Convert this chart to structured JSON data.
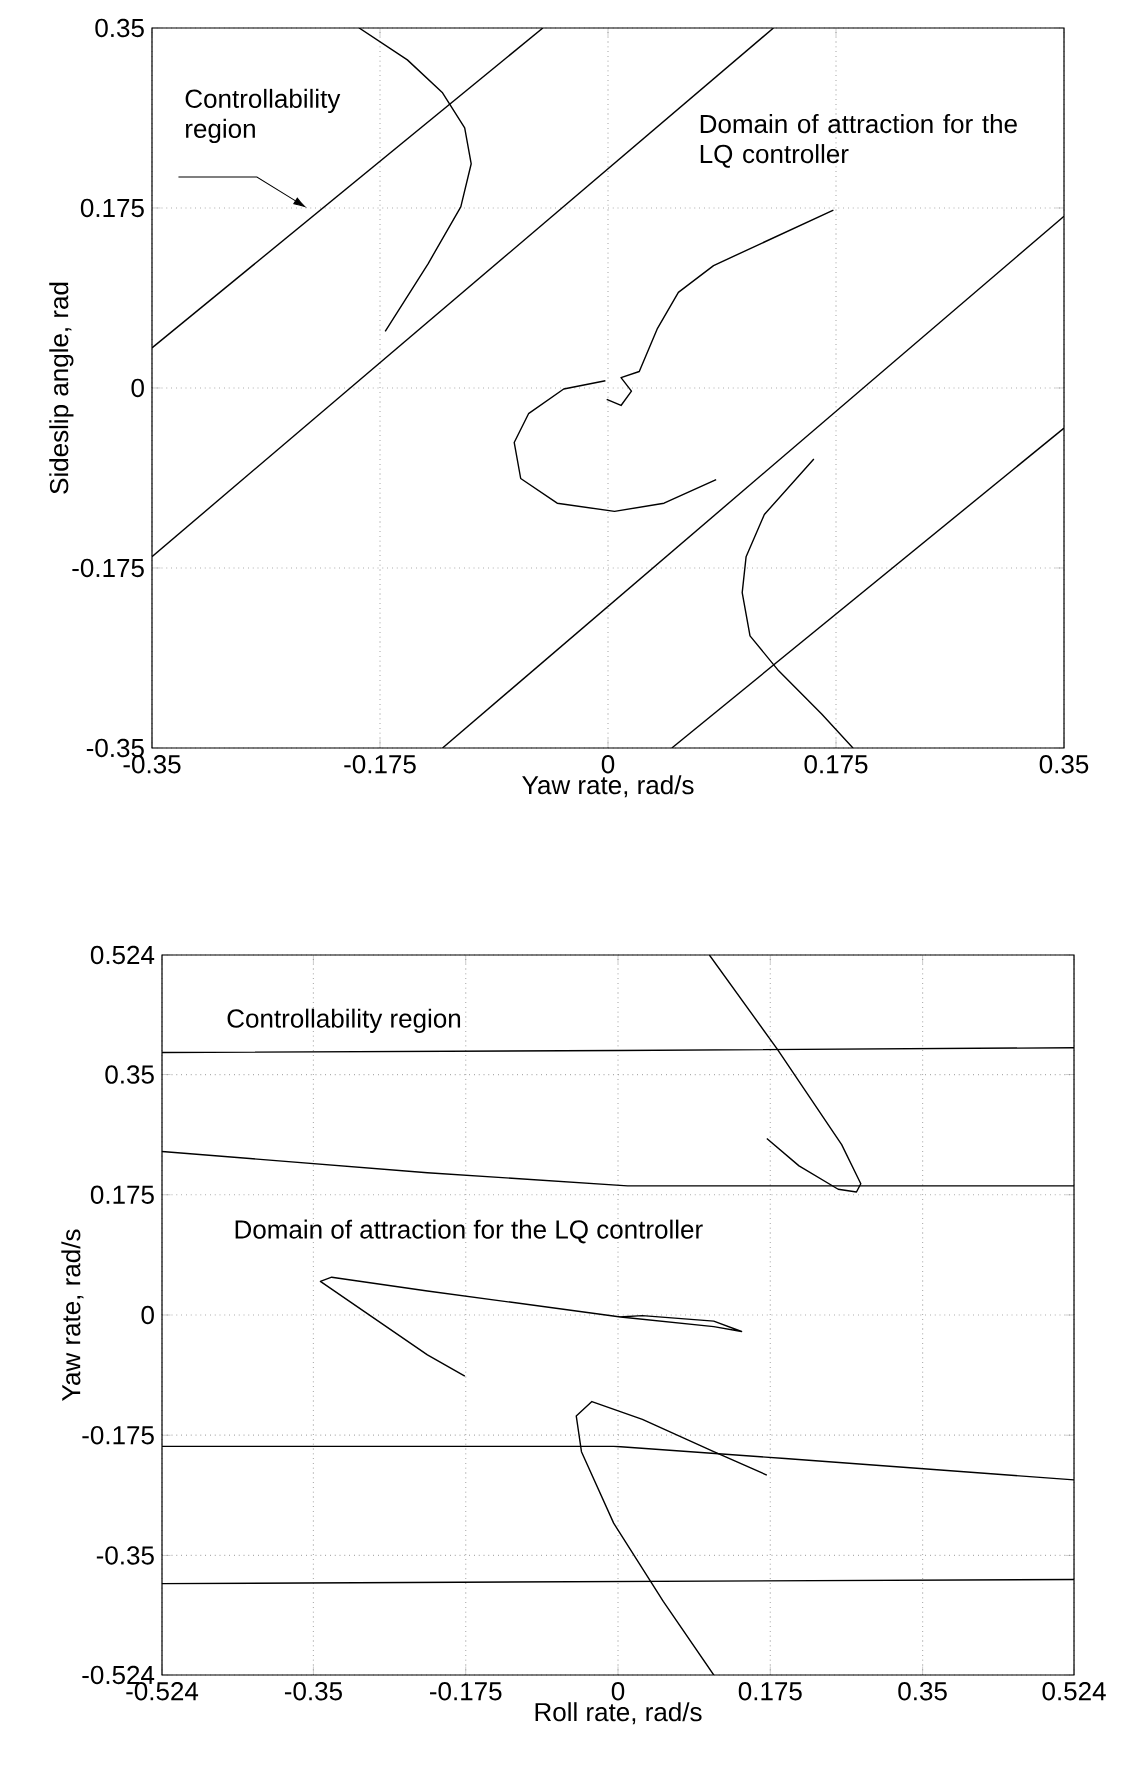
{
  "chart_data": [
    {
      "type": "line",
      "xlabel": "Yaw rate, rad/s",
      "ylabel": "Sideslip angle, rad",
      "xlim": [
        -0.35,
        0.35
      ],
      "ylim": [
        -0.35,
        0.35
      ],
      "xticks": [
        -0.35,
        -0.175,
        0,
        0.175,
        0.35
      ],
      "yticks": [
        -0.35,
        -0.175,
        0,
        0.175,
        0.35
      ],
      "grid": true,
      "marker": "none",
      "line_style": "solid",
      "annotations": [
        {
          "text": "Controllability region",
          "x": -0.231,
          "y": 0.175
        },
        "Domain of attraction for the LQ controller"
      ],
      "series": [
        {
          "color": "#000000",
          "x": [
            -0.35,
            -0.05
          ],
          "values": [
            0.039,
            0.35
          ]
        },
        {
          "color": "#000000",
          "x": [
            -0.35,
            0.127
          ],
          "values": [
            -0.164,
            0.35
          ]
        },
        {
          "color": "#000000",
          "x": [
            -0.127,
            0.35
          ],
          "values": [
            -0.35,
            0.167
          ]
        },
        {
          "color": "#000000",
          "x": [
            0.049,
            0.35
          ],
          "values": [
            -0.35,
            -0.039
          ]
        },
        {
          "color": "#000000",
          "x": [
            -0.171,
            -0.138,
            -0.113,
            -0.105,
            -0.11,
            -0.127,
            -0.154,
            -0.191
          ],
          "values": [
            0.055,
            0.121,
            0.176,
            0.218,
            0.253,
            0.287,
            0.319,
            0.35
          ]
        },
        {
          "color": "#000000",
          "x": [
            0.173,
            0.081,
            0.054,
            0.038,
            0.024,
            0.01,
            0.018,
            0.01,
            -0.001
          ],
          "values": [
            0.173,
            0.119,
            0.093,
            0.058,
            0.016,
            0.01,
            -0.003,
            -0.017,
            -0.011
          ]
        },
        {
          "color": "#000000",
          "x": [
            0.083,
            0.043,
            0.005,
            -0.039,
            -0.067,
            -0.072,
            -0.061,
            -0.034,
            -0.002
          ],
          "values": [
            -0.089,
            -0.112,
            -0.12,
            -0.112,
            -0.088,
            -0.053,
            -0.025,
            -0.001,
            0.007
          ]
        },
        {
          "color": "#000000",
          "x": [
            0.158,
            0.12,
            0.106,
            0.103,
            0.109,
            0.131,
            0.164,
            0.188
          ],
          "values": [
            -0.069,
            -0.123,
            -0.164,
            -0.199,
            -0.241,
            -0.275,
            -0.317,
            -0.35
          ]
        }
      ]
    },
    {
      "type": "line",
      "xlabel": "Roll rate, rad/s",
      "ylabel": "Yaw rate, rad/s",
      "xlim": [
        -0.524,
        0.524
      ],
      "ylim": [
        -0.524,
        0.524
      ],
      "xticks": [
        -0.524,
        -0.35,
        -0.175,
        0,
        0.175,
        0.35,
        0.524
      ],
      "yticks": [
        -0.524,
        -0.35,
        -0.175,
        0,
        0.175,
        0.35,
        0.524
      ],
      "grid": true,
      "marker": "none",
      "line_style": "solid",
      "annotations": [
        "Controllability region",
        "Domain of attraction for the LQ controller"
      ],
      "series": [
        {
          "color": "#000000",
          "x": [
            -0.524,
            0.0,
            0.524
          ],
          "values": [
            0.382,
            0.385,
            0.389
          ]
        },
        {
          "color": "#000000",
          "x": [
            -0.524,
            -0.219,
            0.011,
            0.524
          ],
          "values": [
            0.238,
            0.207,
            0.188,
            0.188
          ]
        },
        {
          "color": "#000000",
          "x": [
            -0.524,
            -0.005,
            0.192,
            0.524
          ],
          "values": [
            -0.191,
            -0.191,
            -0.209,
            -0.24
          ]
        },
        {
          "color": "#000000",
          "x": [
            -0.524,
            0.524
          ],
          "values": [
            -0.391,
            -0.385
          ]
        },
        {
          "color": "#000000",
          "x": [
            0.171,
            0.208,
            0.253,
            0.274,
            0.279,
            0.257,
            0.183,
            0.105
          ],
          "values": [
            0.257,
            0.217,
            0.183,
            0.179,
            0.191,
            0.248,
            0.387,
            0.524
          ]
        },
        {
          "color": "#000000",
          "x": [
            -0.176,
            -0.219,
            -0.342,
            -0.329,
            -0.219,
            0.003,
            0.11,
            0.142,
            0.11,
            0.028,
            0.001
          ],
          "values": [
            -0.089,
            -0.058,
            0.049,
            0.055,
            0.035,
            -0.003,
            -0.017,
            -0.024,
            -0.009,
            -0.001,
            -0.003
          ]
        },
        {
          "color": "#000000",
          "x": [
            0.171,
            0.11,
            0.028,
            -0.03,
            -0.048,
            -0.042,
            -0.005,
            0.052,
            0.11
          ],
          "values": [
            -0.233,
            -0.199,
            -0.152,
            -0.126,
            -0.147,
            -0.199,
            -0.303,
            -0.417,
            -0.524
          ]
        }
      ]
    }
  ]
}
